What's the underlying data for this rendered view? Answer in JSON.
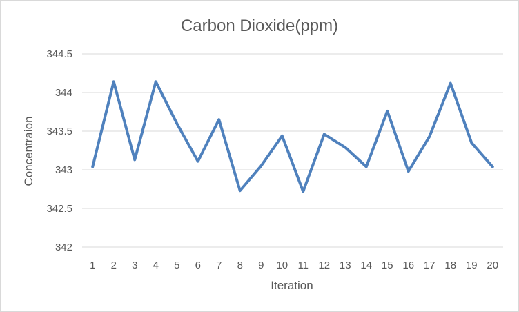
{
  "chart_data": {
    "type": "line",
    "title": "Carbon Dioxide(ppm)",
    "xlabel": "Iteration",
    "ylabel": "Concentraion",
    "x": [
      "1",
      "2",
      "3",
      "4",
      "5",
      "6",
      "7",
      "8",
      "9",
      "10",
      "11",
      "12",
      "13",
      "14",
      "15",
      "16",
      "17",
      "18",
      "19",
      "20"
    ],
    "series": [
      {
        "values": [
          343.04,
          344.14,
          343.13,
          344.14,
          343.6,
          343.11,
          343.65,
          342.73,
          343.05,
          343.44,
          342.72,
          343.46,
          343.29,
          343.04,
          343.76,
          342.98,
          343.43,
          344.12,
          343.35,
          343.04
        ],
        "color": "#4f81bd"
      }
    ],
    "ylim": [
      342,
      344.5
    ],
    "yticks": [
      "342",
      "342.5",
      "343",
      "343.5",
      "344",
      "344.5"
    ],
    "grid": true,
    "legend": "none"
  }
}
